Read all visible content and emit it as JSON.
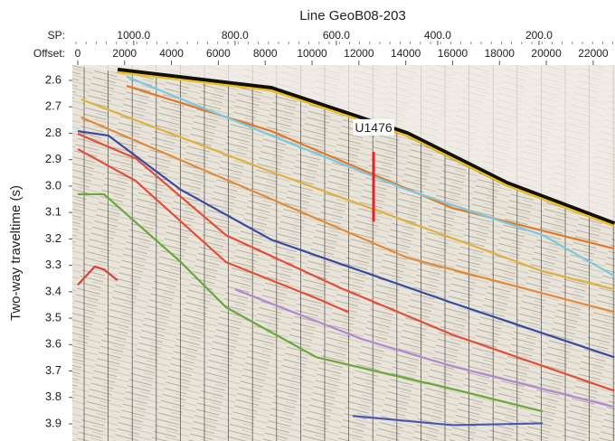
{
  "chart_data": {
    "type": "seismic",
    "title": "Line GeoB08-203",
    "xlabel": "Offset:",
    "x2label": "SP:",
    "ylabel": "Two-way traveltime (s)",
    "xlim": [
      -230,
      22930
    ],
    "xticks": [
      0,
      2000,
      4000,
      6000,
      8000,
      10000,
      12000,
      14000,
      16000,
      18000,
      20000,
      22000
    ],
    "x2lim": [
      1121,
      50
    ],
    "x2ticks": [
      {
        "value": 1000,
        "label": "1000.0"
      },
      {
        "value": 800,
        "label": "800.0"
      },
      {
        "value": 600,
        "label": "600.0"
      },
      {
        "value": 400,
        "label": "400.0"
      },
      {
        "value": 200,
        "label": "200.0"
      }
    ],
    "ylim": [
      2.542,
      3.965
    ],
    "yticks": [
      2.6,
      2.7,
      2.8,
      2.9,
      {
        "value": 3,
        "label": "3.0"
      },
      3.1,
      3.2,
      3.3,
      3.4,
      3.5,
      3.6,
      3.7,
      3.8,
      3.9
    ],
    "series": [
      {
        "color": "#f2c21b",
        "x": [
          1700,
          8260,
          14050,
          18300,
          22900
        ],
        "values": [
          2.569,
          2.638,
          2.809,
          2.997,
          3.151
        ]
      },
      {
        "color": "#e07a2a",
        "x": [
          2085,
          8260,
          15980,
          22900
        ],
        "values": [
          2.621,
          2.792,
          3.083,
          3.237
        ]
      },
      {
        "color": "#7cc8e0",
        "x": [
          2085,
          8260,
          14050,
          19850,
          22900
        ],
        "values": [
          2.586,
          2.809,
          3.014,
          3.186,
          3.34
        ]
      },
      {
        "color": "#e0b040",
        "x": [
          150,
          8260,
          14050,
          19850,
          22900
        ],
        "values": [
          2.672,
          2.946,
          3.134,
          3.323,
          3.391
        ]
      },
      {
        "color": "#e08a3a",
        "x": [
          150,
          8260,
          14050,
          22900
        ],
        "values": [
          2.74,
          3.049,
          3.271,
          3.477
        ]
      },
      {
        "color": "#3b4aa0",
        "x": [
          0,
          1310,
          4400,
          8260,
          15980,
          22900
        ],
        "values": [
          2.792,
          2.809,
          3.014,
          3.203,
          3.442,
          3.648
        ]
      },
      {
        "color": "#e0503a",
        "x": [
          0,
          2470,
          6330,
          11350,
          15980,
          22900
        ],
        "values": [
          2.802,
          2.895,
          3.186,
          3.391,
          3.562,
          3.775
        ]
      },
      {
        "color": "#e0503a",
        "x": [
          0,
          2470,
          6330,
          10190,
          11540
        ],
        "values": [
          2.86,
          2.98,
          3.288,
          3.425,
          3.477
        ]
      },
      {
        "color": "#6aa83a",
        "x": [
          0,
          1120,
          4400,
          6330,
          10190,
          15980,
          19850
        ],
        "values": [
          3.031,
          3.031,
          3.288,
          3.459,
          3.648,
          3.768,
          3.853
        ]
      },
      {
        "color": "#b08ad0",
        "x": [
          6720,
          12120,
          15980,
          22900
        ],
        "values": [
          3.391,
          3.579,
          3.682,
          3.836
        ]
      },
      {
        "color": "#d8403a",
        "x": [
          0,
          730,
          1120,
          1700
        ],
        "values": [
          3.374,
          3.305,
          3.316,
          3.357
        ]
      },
      {
        "color": "#4a58b0",
        "x": [
          11735,
          15980,
          19850
        ],
        "values": [
          3.87,
          3.905,
          3.898
        ]
      }
    ],
    "annotations": [
      {
        "text": "U1476",
        "x": 12625,
        "y": [
          2.871,
          3.134
        ],
        "color": "#e8202a"
      }
    ]
  }
}
